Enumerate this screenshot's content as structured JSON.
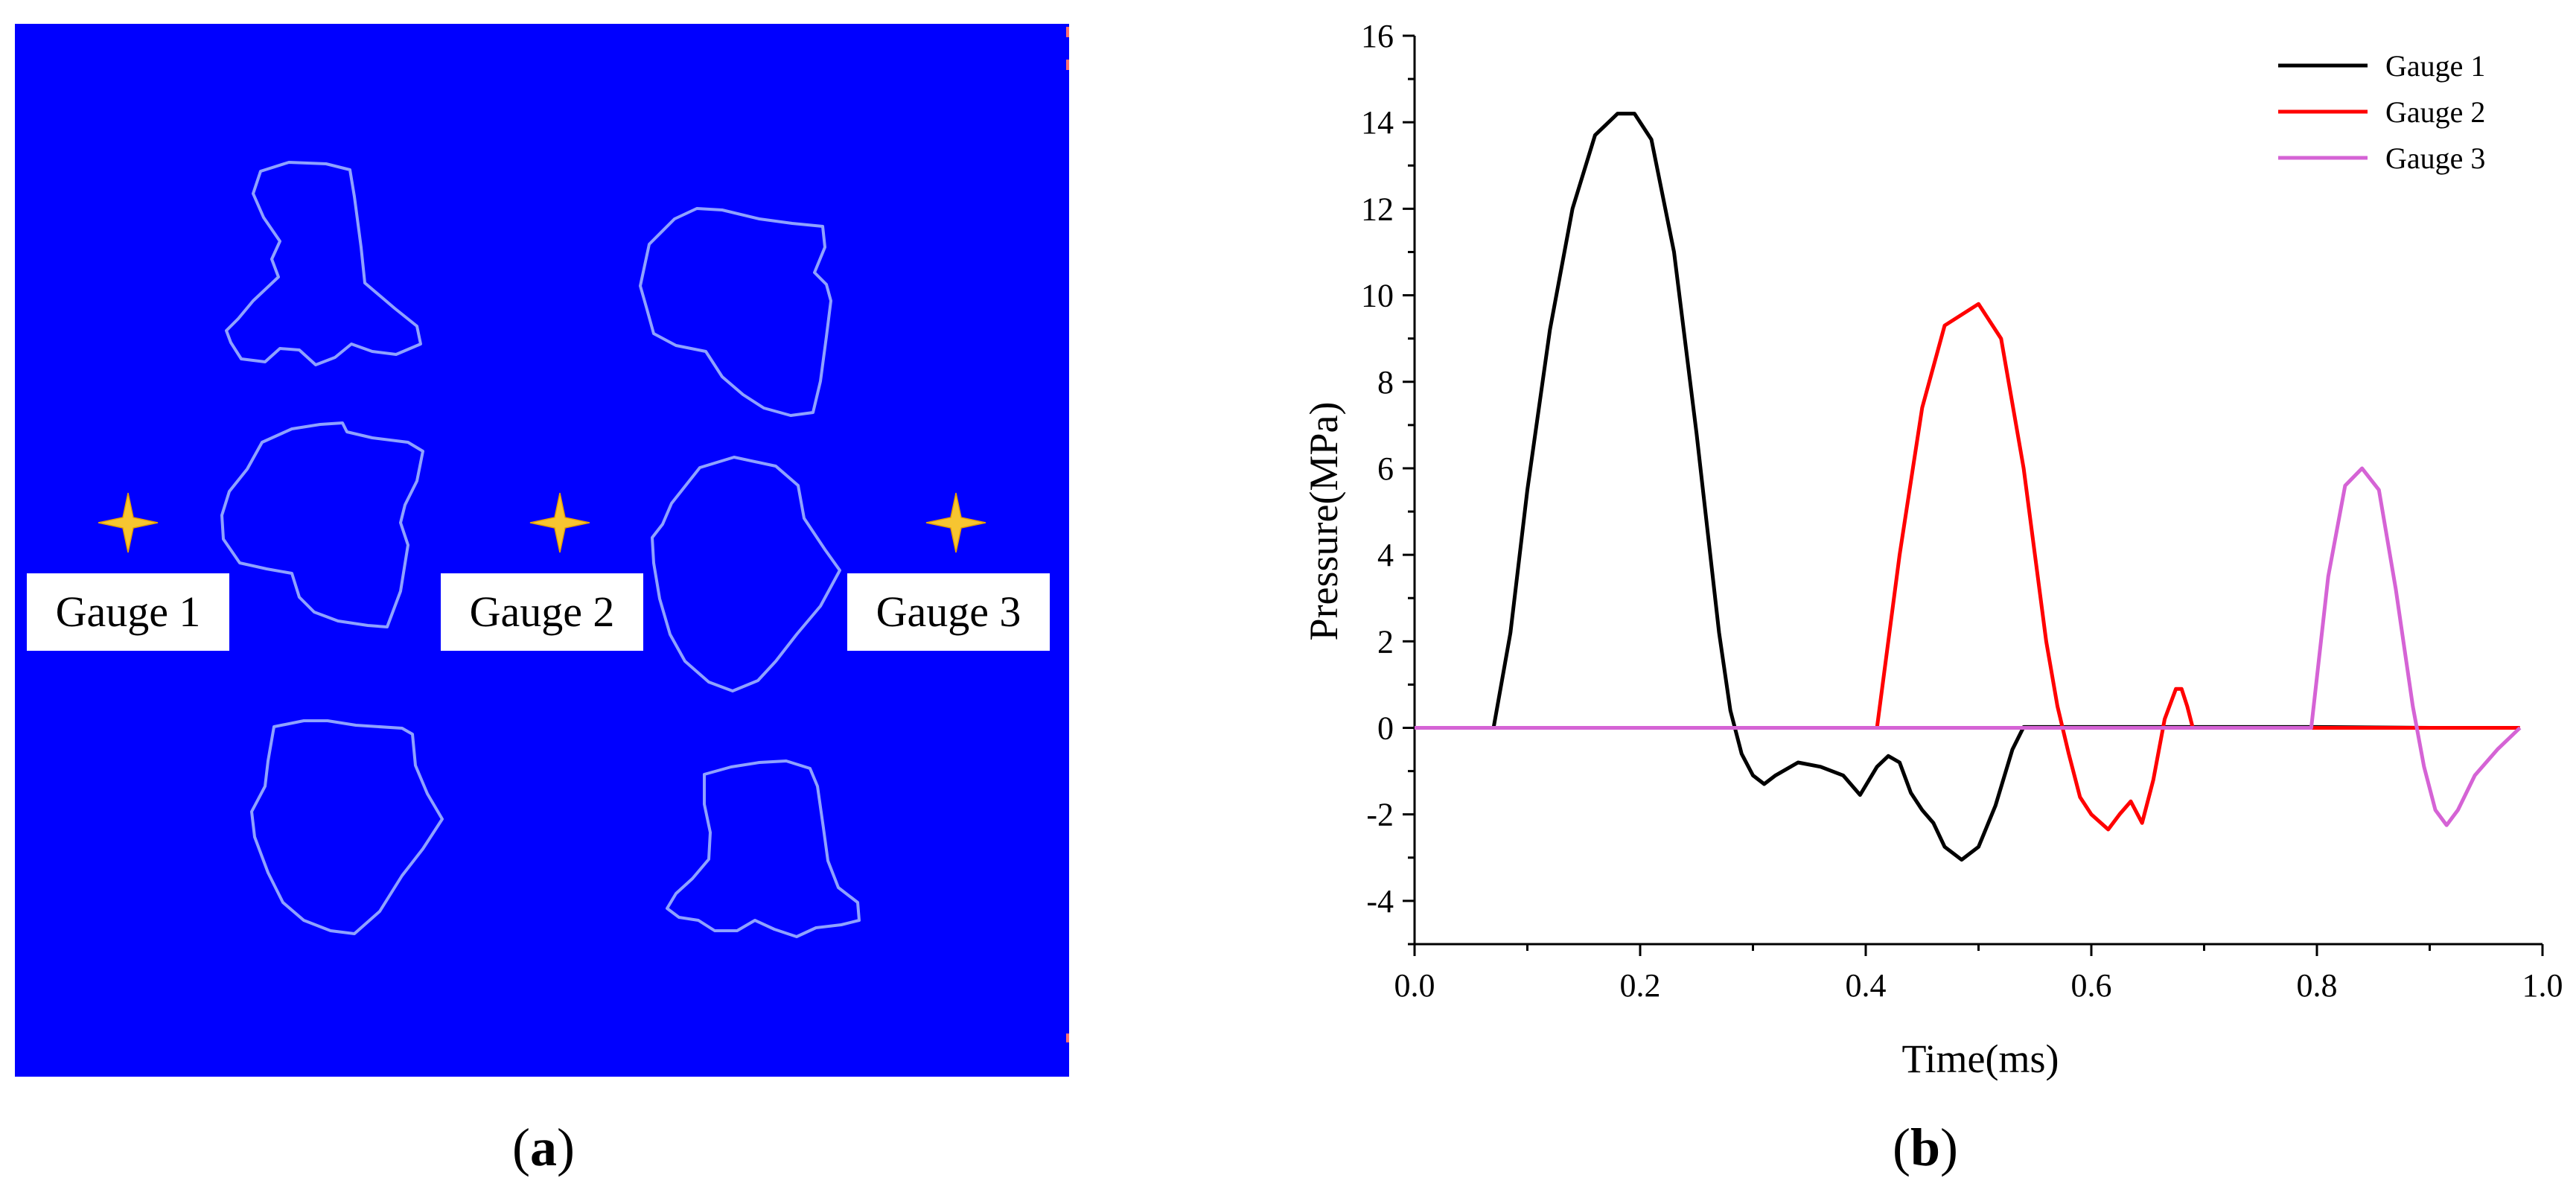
{
  "panel_a": {
    "caption_open": "(",
    "caption_letter": "a",
    "caption_close": ")",
    "background_color": "#0000ff",
    "gauges": [
      {
        "label": "Gauge 1",
        "icon": "star-marker-icon"
      },
      {
        "label": "Gauge 2",
        "icon": "star-marker-icon"
      },
      {
        "label": "Gauge 3",
        "icon": "star-marker-icon"
      }
    ]
  },
  "panel_b": {
    "caption_open": "(",
    "caption_letter": "b",
    "caption_close": ")"
  },
  "chart_data": {
    "type": "line",
    "xlabel": "Time(ms)",
    "ylabel": "Pressure(MPa)",
    "xlim": [
      0.0,
      1.0
    ],
    "ylim": [
      -5,
      16
    ],
    "xticks": [
      "0.0",
      "0.2",
      "0.4",
      "0.6",
      "0.8",
      "1.0"
    ],
    "yticks": [
      "-4",
      "-2",
      "0",
      "2",
      "4",
      "6",
      "8",
      "10",
      "12",
      "14",
      "16"
    ],
    "grid": false,
    "legend_position": "top-right",
    "series": [
      {
        "name": "Gauge 1",
        "color": "#000000",
        "x": [
          0,
          0.07,
          0.085,
          0.1,
          0.12,
          0.14,
          0.16,
          0.18,
          0.195,
          0.21,
          0.23,
          0.25,
          0.27,
          0.28,
          0.29,
          0.3,
          0.31,
          0.32,
          0.34,
          0.36,
          0.38,
          0.395,
          0.41,
          0.42,
          0.43,
          0.44,
          0.45,
          0.46,
          0.47,
          0.485,
          0.5,
          0.515,
          0.53,
          0.54,
          0.6,
          0.7,
          0.8,
          0.9,
          0.95
        ],
        "y": [
          0,
          0,
          2.2,
          5.5,
          9.2,
          12.0,
          13.7,
          14.2,
          14.2,
          13.6,
          11.0,
          6.8,
          2.2,
          0.4,
          -0.6,
          -1.1,
          -1.3,
          -1.1,
          -0.8,
          -0.9,
          -1.1,
          -1.55,
          -0.9,
          -0.65,
          -0.8,
          -1.5,
          -1.9,
          -2.2,
          -2.75,
          -3.05,
          -2.75,
          -1.8,
          -0.5,
          0.02,
          0.02,
          0.02,
          0.02,
          0.0,
          0.0
        ]
      },
      {
        "name": "Gauge 2",
        "color": "#ff0000",
        "x": [
          0,
          0.1,
          0.2,
          0.3,
          0.41,
          0.43,
          0.45,
          0.47,
          0.5,
          0.52,
          0.54,
          0.56,
          0.57,
          0.58,
          0.59,
          0.6,
          0.615,
          0.625,
          0.635,
          0.645,
          0.655,
          0.665,
          0.675,
          0.68,
          0.685,
          0.69,
          0.7,
          0.75,
          0.8,
          0.9,
          0.98
        ],
        "y": [
          0,
          0,
          0,
          0,
          0,
          4.0,
          7.4,
          9.3,
          9.8,
          9.0,
          6.0,
          2.0,
          0.5,
          -0.6,
          -1.6,
          -2.0,
          -2.35,
          -2.0,
          -1.7,
          -2.2,
          -1.2,
          0.2,
          0.9,
          0.9,
          0.5,
          0.0,
          0,
          0,
          0,
          0,
          0
        ]
      },
      {
        "name": "Gauge 3",
        "color": "#d563d5",
        "x": [
          0,
          0.1,
          0.3,
          0.5,
          0.7,
          0.795,
          0.81,
          0.825,
          0.84,
          0.855,
          0.87,
          0.885,
          0.895,
          0.905,
          0.915,
          0.925,
          0.94,
          0.96,
          0.98
        ],
        "y": [
          0,
          0,
          0,
          0,
          0,
          0,
          3.5,
          5.6,
          6.0,
          5.5,
          3.2,
          0.5,
          -0.9,
          -1.9,
          -2.25,
          -1.9,
          -1.1,
          -0.5,
          0
        ]
      }
    ]
  }
}
